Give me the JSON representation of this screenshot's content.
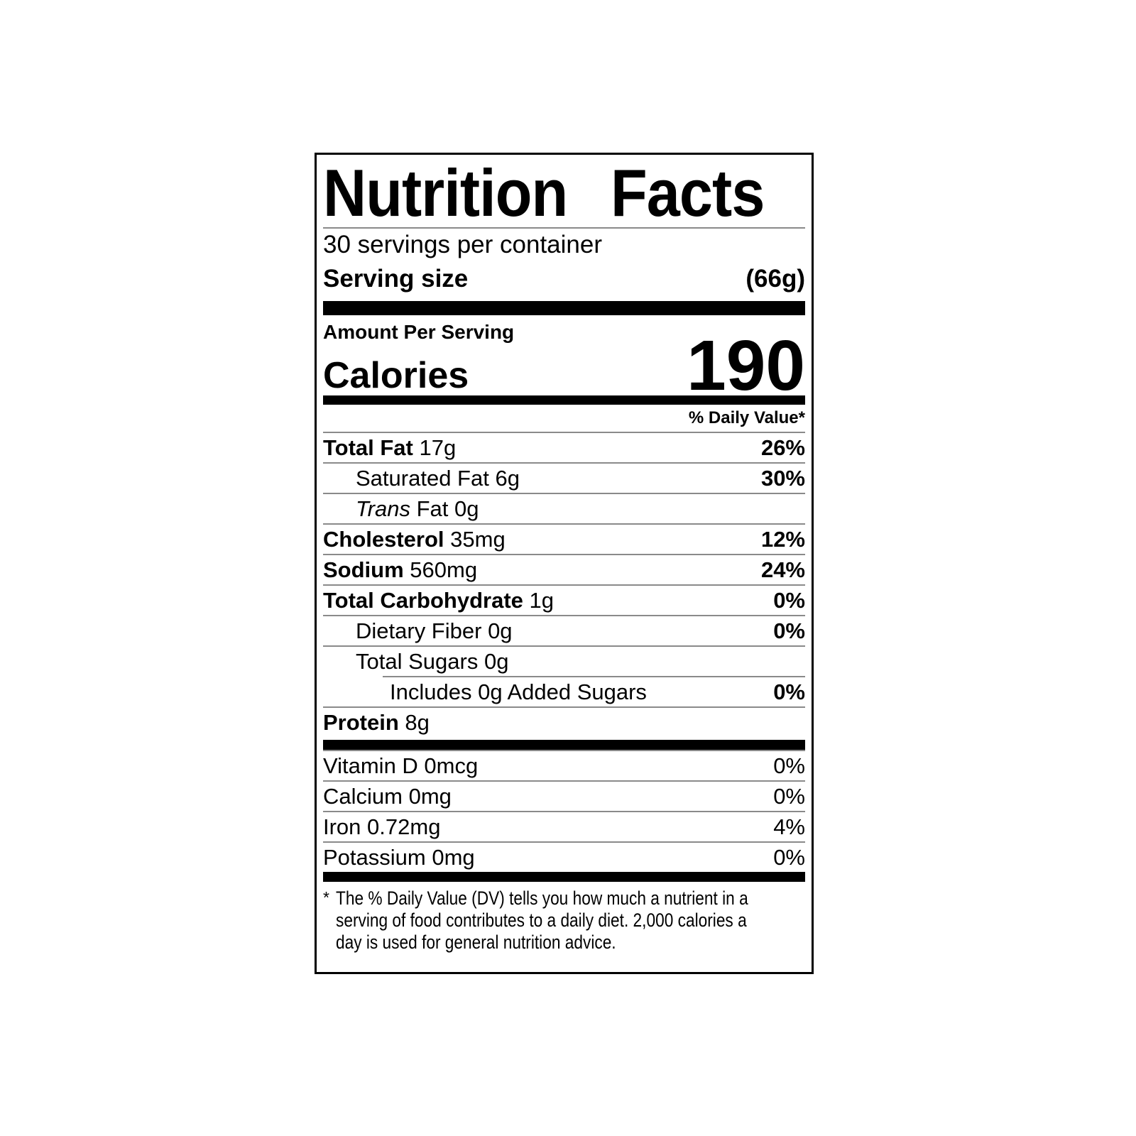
{
  "label": {
    "title": "Nutrition Facts",
    "servings_per_container": "30 servings per container",
    "serving_size_label": "Serving size",
    "serving_size_value": "(66g)",
    "amount_per_serving": "Amount Per Serving",
    "calories_label": "Calories",
    "calories_value": "190",
    "daily_value_header": "% Daily Value*",
    "nutrients": [
      {
        "name": "Total Fat",
        "amount": "17g",
        "dv": "26%"
      },
      {
        "name": "Saturated Fat",
        "amount": "6g",
        "dv": "30%"
      },
      {
        "name": "Trans",
        "name_suffix": "Fat",
        "amount": "0g",
        "dv": ""
      },
      {
        "name": "Cholesterol",
        "amount": "35mg",
        "dv": "12%"
      },
      {
        "name": "Sodium",
        "amount": "560mg",
        "dv": "24%"
      },
      {
        "name": "Total Carbohydrate",
        "amount": "1g",
        "dv": "0%"
      },
      {
        "name": "Dietary Fiber",
        "amount": "0g",
        "dv": "0%"
      },
      {
        "name": "Total Sugars",
        "amount": "0g",
        "dv": ""
      },
      {
        "name": "Includes 0g Added Sugars",
        "amount": "",
        "dv": "0%"
      },
      {
        "name": "Protein",
        "amount": "8g",
        "dv": ""
      }
    ],
    "micronutrients": [
      {
        "name": "Vitamin D 0mcg",
        "dv": "0%"
      },
      {
        "name": "Calcium 0mg",
        "dv": "0%"
      },
      {
        "name": "Iron 0.72mg",
        "dv": "4%"
      },
      {
        "name": "Potassium 0mg",
        "dv": "0%"
      }
    ],
    "footnote_marker": "*",
    "footnote_lines": [
      "The % Daily Value (DV) tells you how much a nutrient in a",
      "serving of food contributes to a daily diet. 2,000 calories a",
      "day is used for general nutrition advice."
    ],
    "colors": {
      "text": "#000000",
      "background": "#ffffff",
      "hairline": "#8a8a8a"
    }
  }
}
